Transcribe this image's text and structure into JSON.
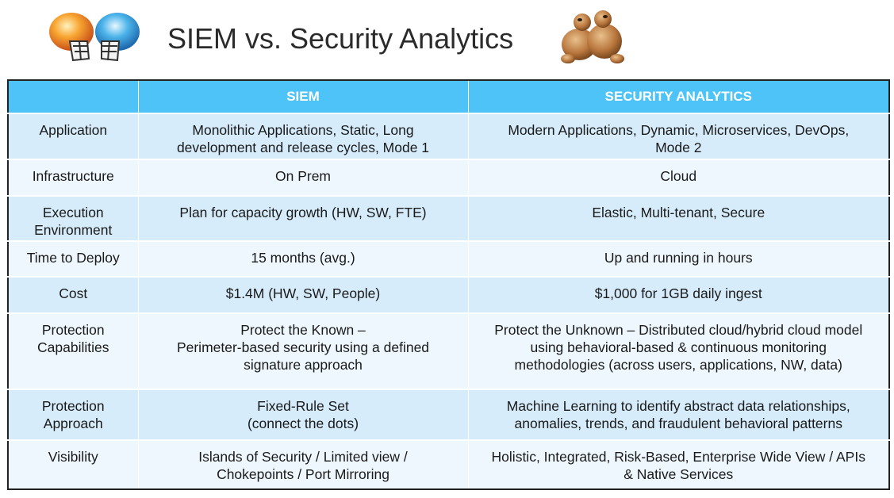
{
  "title": "SIEM vs. Security Analytics",
  "icons": {
    "left": "football-helmets-icon",
    "right": "wrestling-figures-icon"
  },
  "table": {
    "headers": [
      "",
      "SIEM",
      "SECURITY ANALYTICS"
    ],
    "rows": [
      {
        "label": "Application",
        "siem": "Monolithic Applications, Static, Long\ndevelopment and release cycles, Mode 1",
        "analytics": "Modern Applications, Dynamic, Microservices, DevOps,\nMode 2"
      },
      {
        "label": "Infrastructure",
        "siem": "On Prem",
        "analytics": "Cloud"
      },
      {
        "label": "Execution\nEnvironment",
        "siem": "Plan  for capacity growth (HW, SW, FTE)",
        "analytics": "Elastic, Multi-tenant, Secure"
      },
      {
        "label": "Time to Deploy",
        "siem": "15 months (avg.)",
        "analytics": "Up and running in hours"
      },
      {
        "label": "Cost",
        "siem": "$1.4M (HW, SW, People)",
        "analytics": "$1,000 for 1GB daily ingest"
      },
      {
        "label": "Protection\nCapabilities",
        "siem": "Protect the Known –\nPerimeter-based security using a defined\nsignature approach",
        "analytics": "Protect the Unknown – Distributed cloud/hybrid cloud model\nusing behavioral-based & continuous monitoring\nmethodologies (across users, applications, NW, data)"
      },
      {
        "label": "Protection\nApproach",
        "siem": "Fixed-Rule Set\n(connect the dots)",
        "analytics": "Machine Learning to identify abstract data relationships,\nanomalies, trends, and fraudulent behavioral patterns"
      },
      {
        "label": "Visibility",
        "siem": "Islands of Security / Limited view /\nChokepoints / Port Mirroring",
        "analytics": "Holistic, Integrated, Risk-Based, Enterprise Wide View / APIs\n& Native Services"
      }
    ]
  }
}
